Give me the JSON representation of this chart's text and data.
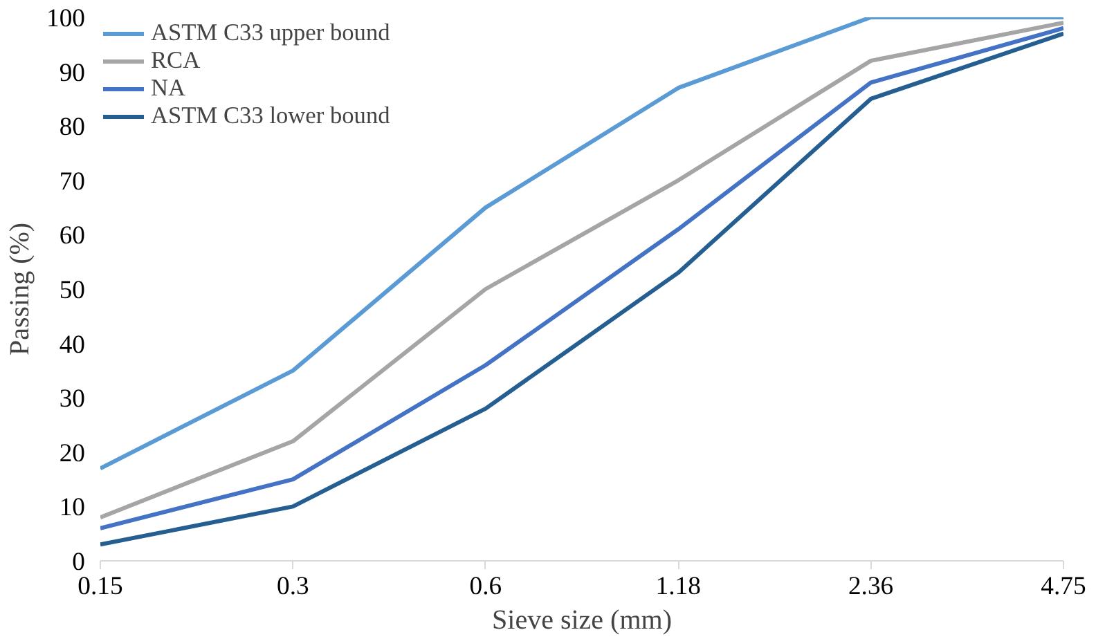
{
  "chart_data": {
    "type": "line",
    "xlabel": "Sieve size (mm)",
    "ylabel": "Passing (%)",
    "categories": [
      "0.15",
      "0.3",
      "0.6",
      "1.18",
      "2.36",
      "4.75"
    ],
    "ylim": [
      0,
      100
    ],
    "yticks": [
      0,
      10,
      20,
      30,
      40,
      50,
      60,
      70,
      80,
      90,
      100
    ],
    "grid": false,
    "legend": "top left",
    "marker": "none",
    "line_style": "solid",
    "series": [
      {
        "name": "ASTM C33 upper bound",
        "color": "#5b9bd5",
        "values": [
          17,
          35,
          65,
          87,
          100,
          100
        ]
      },
      {
        "name": "RCA",
        "color": "#a5a5a5",
        "values": [
          8,
          22,
          50,
          70,
          92,
          99
        ]
      },
      {
        "name": "NA",
        "color": "#4472c4",
        "values": [
          6,
          15,
          36,
          61,
          88,
          98
        ]
      },
      {
        "name": "ASTM C33 lower bound",
        "color": "#255e91",
        "values": [
          3,
          10,
          28,
          53,
          85,
          97
        ]
      }
    ]
  }
}
